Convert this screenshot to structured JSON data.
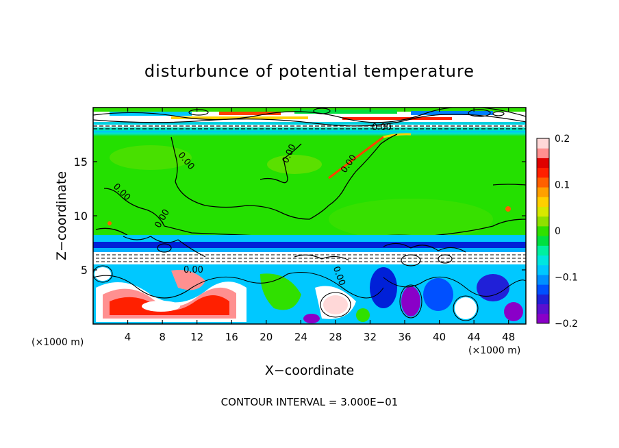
{
  "chart_data": {
    "type": "heatmap",
    "title": "disturbunce of potential temperature",
    "xlabel": "X−coordinate",
    "ylabel": "Z−coordinate",
    "x_units": "(×1000 m)",
    "y_units": "(×1000 m)",
    "xlim": [
      0,
      50
    ],
    "ylim": [
      0,
      20
    ],
    "x_ticks": [
      "4",
      "8",
      "12",
      "16",
      "20",
      "24",
      "28",
      "32",
      "36",
      "40",
      "44",
      "48"
    ],
    "y_ticks": [
      "5",
      "10",
      "15"
    ],
    "colorbar": {
      "min": -0.2,
      "max": 0.2,
      "tick_labels": [
        "0.2",
        "0.1",
        "0",
        "−0.1",
        "−0.2"
      ],
      "colors": [
        "#8a00c8",
        "#5a10d0",
        "#2020d8",
        "#0050ff",
        "#0090ff",
        "#00c8ff",
        "#00e6e0",
        "#00f0a0",
        "#00e040",
        "#30e000",
        "#90e000",
        "#d8e800",
        "#ffd000",
        "#ffa000",
        "#ff6000",
        "#ff2000",
        "#e00000",
        "#ff9090",
        "#ffd8d8"
      ]
    },
    "contour_labels": [
      "0.00",
      "0.00",
      "0.00",
      "0.00",
      "0.00",
      "0.00",
      "0.00",
      "0.00"
    ],
    "footer": "CONTOUR INTERVAL = 3.000E−01"
  }
}
